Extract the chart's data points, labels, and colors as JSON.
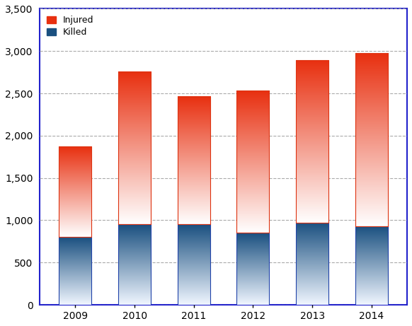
{
  "years": [
    "2009",
    "2010",
    "2011",
    "2012",
    "2013",
    "2014"
  ],
  "killed": [
    800,
    950,
    950,
    850,
    970,
    930
  ],
  "total": [
    1870,
    2750,
    2460,
    2530,
    2890,
    2975
  ],
  "ylim": [
    0,
    3500
  ],
  "yticks": [
    0,
    500,
    1000,
    1500,
    2000,
    2500,
    3000,
    3500
  ],
  "killed_top_color": "#1a5080",
  "killed_bottom_color": "#f0f6ff",
  "injured_top_color": "#e83010",
  "injured_bottom_color": "#ffffff",
  "killed_border_color": "#2244aa",
  "injured_border_color": "#dd3311",
  "bar_width": 0.55,
  "bg_color": "#ffffff",
  "axis_color": "#2222cc",
  "grid_color": "#aaaaaa",
  "legend_injured": "Injured",
  "legend_killed": "Killed"
}
